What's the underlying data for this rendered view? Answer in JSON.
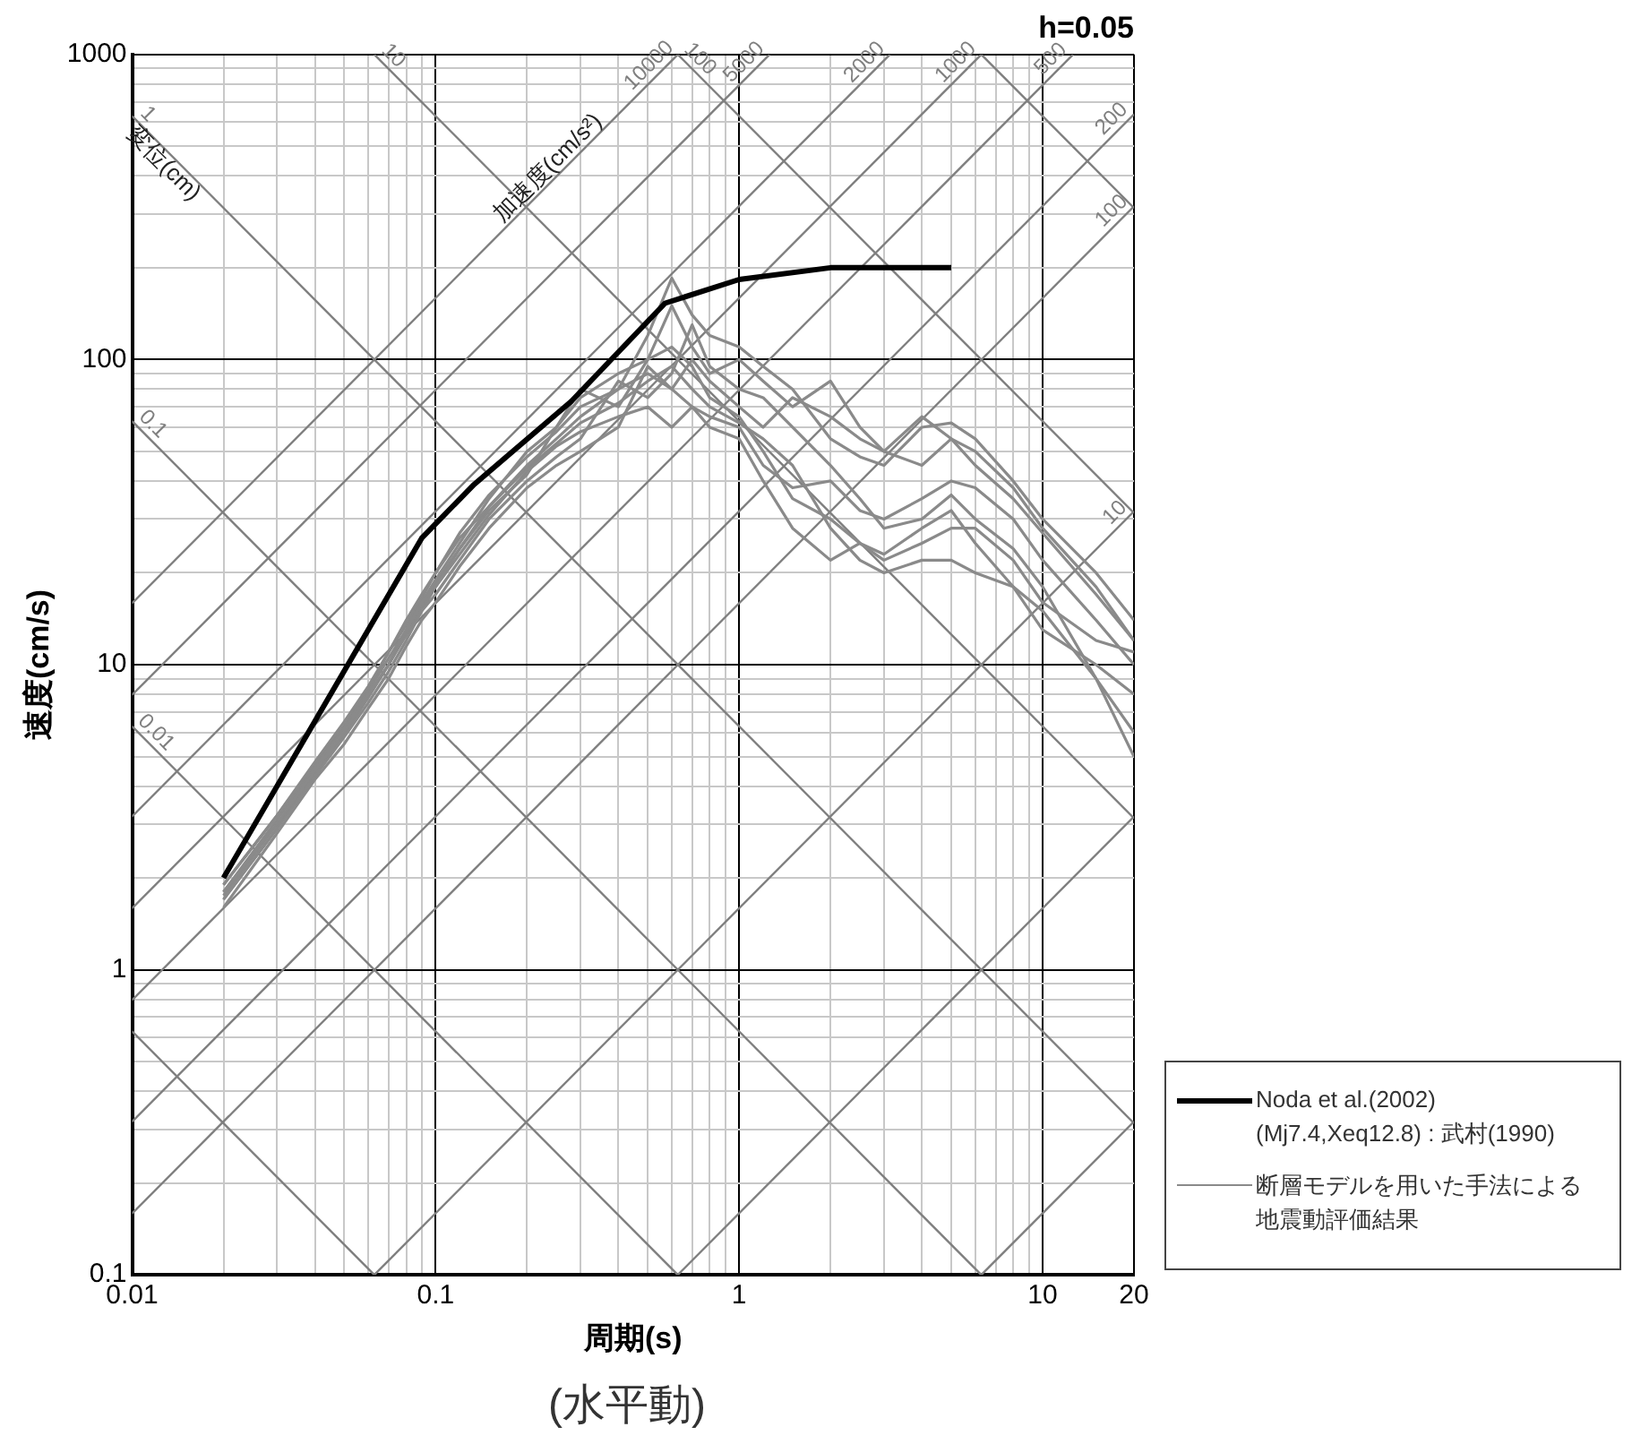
{
  "chart_data": {
    "type": "line",
    "title": "h=0.05",
    "xlabel": "周期(s)",
    "ylabel": "速度(cm/s)",
    "log": "xy",
    "grid": true,
    "legend": "right",
    "marker": "none",
    "xlim": [
      0.01,
      20
    ],
    "ylim": [
      0.1,
      1000
    ],
    "xticks": [
      0.01,
      {
        "value": 0.02,
        "label": null
      },
      {
        "value": 0.03,
        "label": null
      },
      {
        "value": 0.04,
        "label": null
      },
      {
        "value": 0.05,
        "label": null
      },
      {
        "value": 0.06,
        "label": null
      },
      {
        "value": 0.07,
        "label": null
      },
      {
        "value": 0.08,
        "label": null
      },
      {
        "value": 0.09,
        "label": null
      },
      0.1,
      {
        "value": 0.2,
        "label": null
      },
      {
        "value": 0.3,
        "label": null
      },
      {
        "value": 0.4,
        "label": null
      },
      {
        "value": 0.5,
        "label": null
      },
      {
        "value": 0.6,
        "label": null
      },
      {
        "value": 0.7,
        "label": null
      },
      {
        "value": 0.8,
        "label": null
      },
      {
        "value": 0.9,
        "label": null
      },
      1,
      {
        "value": 2,
        "label": null
      },
      {
        "value": 3,
        "label": null
      },
      {
        "value": 4,
        "label": null
      },
      {
        "value": 5,
        "label": null
      },
      {
        "value": 6,
        "label": null
      },
      {
        "value": 7,
        "label": null
      },
      {
        "value": 8,
        "label": null
      },
      {
        "value": 9,
        "label": null
      },
      10,
      20
    ],
    "yticks": [
      0.1,
      {
        "value": 0.2,
        "label": null
      },
      {
        "value": 0.3,
        "label": null
      },
      {
        "value": 0.4,
        "label": null
      },
      {
        "value": 0.5,
        "label": null
      },
      {
        "value": 0.6,
        "label": null
      },
      {
        "value": 0.7,
        "label": null
      },
      {
        "value": 0.8,
        "label": null
      },
      {
        "value": 0.9,
        "label": null
      },
      1,
      {
        "value": 2,
        "label": null
      },
      {
        "value": 3,
        "label": null
      },
      {
        "value": 4,
        "label": null
      },
      {
        "value": 5,
        "label": null
      },
      {
        "value": 6,
        "label": null
      },
      {
        "value": 7,
        "label": null
      },
      {
        "value": 8,
        "label": null
      },
      {
        "value": 9,
        "label": null
      },
      10,
      {
        "value": 20,
        "label": null
      },
      {
        "value": 30,
        "label": null
      },
      {
        "value": 40,
        "label": null
      },
      {
        "value": 50,
        "label": null
      },
      {
        "value": 60,
        "label": null
      },
      {
        "value": 70,
        "label": null
      },
      {
        "value": 80,
        "label": null
      },
      {
        "value": 90,
        "label": null
      },
      100,
      {
        "value": 200,
        "label": null
      },
      {
        "value": 300,
        "label": null
      },
      {
        "value": 400,
        "label": null
      },
      {
        "value": 500,
        "label": null
      },
      {
        "value": 600,
        "label": null
      },
      {
        "value": 700,
        "label": null
      },
      {
        "value": 800,
        "label": null
      },
      {
        "value": 900,
        "label": null
      },
      1000
    ],
    "x": [
      0.02,
      0.03,
      0.04,
      0.05,
      0.06,
      0.07,
      0.08,
      0.09,
      0.1,
      0.12,
      0.15,
      0.2,
      0.25,
      0.3,
      0.4,
      0.5,
      0.6,
      0.7,
      0.8,
      1,
      1.2,
      1.5,
      2,
      2.5,
      3,
      4,
      5,
      6,
      8,
      10,
      15,
      20
    ],
    "series": [
      {
        "name": "Noda et al.(2002)\n(Mj7.4,Xeq12.8) : 武村(1990)",
        "color": "#000000",
        "x": [
          0.02,
          0.09,
          0.134,
          0.28,
          0.57,
          1,
          2,
          5
        ],
        "values": [
          2.0,
          26,
          39,
          73,
          153,
          183,
          200,
          200
        ]
      },
      {
        "name": "断層モデルを用いた手法による地震動評価結果",
        "color": "#8a8a8a",
        "values": [
          1.9,
          3.2,
          4.8,
          6.5,
          8.5,
          11,
          14,
          17,
          20,
          26,
          33,
          45,
          55,
          65,
          80,
          120,
          185,
          140,
          120,
          110,
          95,
          80,
          55,
          48,
          45,
          60,
          62,
          55,
          40,
          30,
          20,
          14
        ]
      },
      {
        "color": "#8a8a8a",
        "values": [
          1.8,
          3.0,
          4.5,
          6.0,
          8.0,
          10,
          13,
          16,
          18,
          24,
          32,
          42,
          60,
          80,
          70,
          100,
          150,
          110,
          90,
          100,
          85,
          70,
          85,
          60,
          50,
          45,
          55,
          50,
          38,
          28,
          18,
          12
        ]
      },
      {
        "color": "#8a8a8a",
        "values": [
          1.7,
          2.9,
          4.3,
          5.8,
          7.5,
          9.5,
          12,
          15,
          17,
          22,
          30,
          40,
          48,
          55,
          85,
          75,
          90,
          130,
          95,
          80,
          75,
          60,
          45,
          35,
          28,
          30,
          36,
          30,
          24,
          18,
          9,
          5
        ]
      },
      {
        "color": "#8a8a8a",
        "values": [
          1.6,
          2.8,
          4.2,
          5.5,
          7.2,
          9,
          11.5,
          14,
          16,
          21,
          28,
          38,
          45,
          50,
          60,
          95,
          80,
          70,
          60,
          55,
          40,
          28,
          22,
          25,
          23,
          28,
          32,
          25,
          18,
          13,
          10,
          8
        ]
      },
      {
        "color": "#8a8a8a",
        "values": [
          1.8,
          3.1,
          4.6,
          6.2,
          8.2,
          10.5,
          13,
          16,
          19,
          25,
          35,
          50,
          60,
          75,
          90,
          100,
          110,
          95,
          75,
          65,
          50,
          35,
          30,
          25,
          22,
          25,
          28,
          28,
          22,
          16,
          12,
          11
        ]
      },
      {
        "color": "#8a8a8a",
        "values": [
          1.9,
          3.2,
          4.7,
          6.3,
          8.3,
          11,
          13.5,
          16.5,
          20,
          27,
          36,
          48,
          58,
          70,
          80,
          90,
          80,
          100,
          85,
          70,
          60,
          75,
          65,
          55,
          50,
          65,
          55,
          45,
          35,
          27,
          17,
          12
        ]
      },
      {
        "color": "#8a8a8a",
        "values": [
          1.75,
          3.0,
          4.4,
          5.9,
          7.8,
          10,
          12.5,
          15,
          18,
          23,
          31,
          43,
          52,
          58,
          65,
          70,
          60,
          70,
          65,
          60,
          45,
          38,
          40,
          32,
          30,
          35,
          40,
          38,
          30,
          22,
          14,
          10
        ]
      },
      {
        "color": "#8a8a8a",
        "values": [
          1.7,
          2.9,
          4.4,
          6.0,
          7.9,
          10,
          12.8,
          15.5,
          18.5,
          24,
          33,
          44,
          53,
          62,
          72,
          85,
          95,
          80,
          70,
          62,
          55,
          45,
          28,
          22,
          20,
          22,
          22,
          20,
          18,
          15,
          9,
          6
        ]
      },
      {
        "name": "10000",
        "color": "#7f7f7f",
        "x": [
          0.01,
          0.628
        ],
        "values": [
          15.9,
          1000
        ]
      },
      {
        "name": "5000",
        "color": "#7f7f7f",
        "x": [
          0.01,
          1.26
        ],
        "values": [
          7.96,
          1000
        ]
      },
      {
        "name": "2000",
        "color": "#7f7f7f",
        "x": [
          0.01,
          3.14
        ],
        "values": [
          3.18,
          1000
        ]
      },
      {
        "name": "1000",
        "color": "#7f7f7f",
        "x": [
          0.01,
          6.28
        ],
        "values": [
          1.59,
          1000
        ]
      },
      {
        "name": "500",
        "color": "#7f7f7f",
        "x": [
          0.01,
          12.6
        ],
        "values": [
          0.796,
          1000
        ]
      },
      {
        "name": "200",
        "color": "#7f7f7f",
        "x": [
          0.01,
          20
        ],
        "values": [
          0.318,
          637
        ]
      },
      {
        "name": "100",
        "color": "#7f7f7f",
        "x": [
          0.01,
          20
        ],
        "values": [
          0.159,
          318
        ]
      },
      {
        "name": "10",
        "color": "#7f7f7f",
        "x": [
          0.0628,
          20
        ],
        "values": [
          0.1,
          31.8
        ]
      },
      {
        "color": "#7f7f7f",
        "x": [
          0.628,
          20
        ],
        "values": [
          0.1,
          3.18
        ]
      },
      {
        "color": "#7f7f7f",
        "x": [
          6.28,
          20
        ],
        "values": [
          0.1,
          0.318
        ]
      },
      {
        "color": "#7f7f7f",
        "x": [
          6.28,
          20
        ],
        "values": [
          1000,
          314
        ]
      },
      {
        "name": "100",
        "color": "#7f7f7f",
        "x": [
          0.628,
          20
        ],
        "values": [
          1000,
          31.4
        ]
      },
      {
        "name": "10",
        "color": "#7f7f7f",
        "x": [
          0.0628,
          20
        ],
        "values": [
          1000,
          3.14
        ]
      },
      {
        "name": "1",
        "color": "#7f7f7f",
        "x": [
          0.01,
          20
        ],
        "values": [
          628,
          0.314
        ]
      },
      {
        "name": "0.1",
        "color": "#7f7f7f",
        "x": [
          0.01,
          6.28
        ],
        "values": [
          62.8,
          0.1
        ]
      },
      {
        "name": "0.01",
        "color": "#7f7f7f",
        "x": [
          0.01,
          0.628
        ],
        "values": [
          6.28,
          0.1
        ]
      },
      {
        "color": "#7f7f7f",
        "x": [
          0.01,
          0.0628
        ],
        "values": [
          0.628,
          0.1
        ]
      }
    ],
    "annotations": [
      {
        "text": "変位(cm)",
        "x": 0.0135,
        "y": 465
      },
      {
        "text": "加速度(cm/s²)",
        "x": 0.25,
        "y": 398
      },
      "(水平動)"
    ]
  }
}
